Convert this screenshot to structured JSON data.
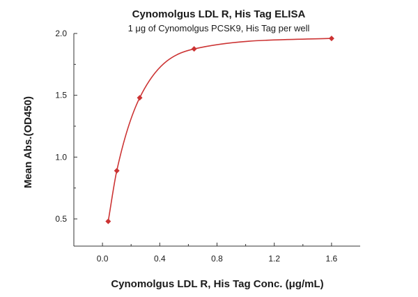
{
  "chart_data": {
    "type": "scatter",
    "title": "Cynomolgus LDL R, His Tag ELISA",
    "subtitle": "1 μg of Cynomolgus PCSK9, His Tag per well",
    "xlabel": "Cynomolgus LDL R, His Tag Conc. (μg/mL)",
    "ylabel": "Mean Abs.(OD450)",
    "xlim": [
      -0.2,
      1.8
    ],
    "ylim": [
      0.28,
      2.0
    ],
    "x_ticks": [
      0.0,
      0.4,
      0.8,
      1.2,
      1.6
    ],
    "x_tick_labels": [
      "0.0",
      "0.4",
      "0.8",
      "1.2",
      "1.6"
    ],
    "y_ticks": [
      0.5,
      1.0,
      1.5,
      2.0
    ],
    "y_tick_labels": [
      "0.5",
      "1.0",
      "1.5",
      "2.0"
    ],
    "grid": false,
    "series": [
      {
        "points": [
          {
            "x": 0.04,
            "y": 0.48
          },
          {
            "x": 0.1,
            "y": 0.89
          },
          {
            "x": 0.26,
            "y": 1.48
          },
          {
            "x": 0.64,
            "y": 1.875
          },
          {
            "x": 1.6,
            "y": 1.96
          }
        ],
        "marker": "diamond",
        "color": "#cc3333",
        "fit_curve": "4PL"
      }
    ]
  }
}
